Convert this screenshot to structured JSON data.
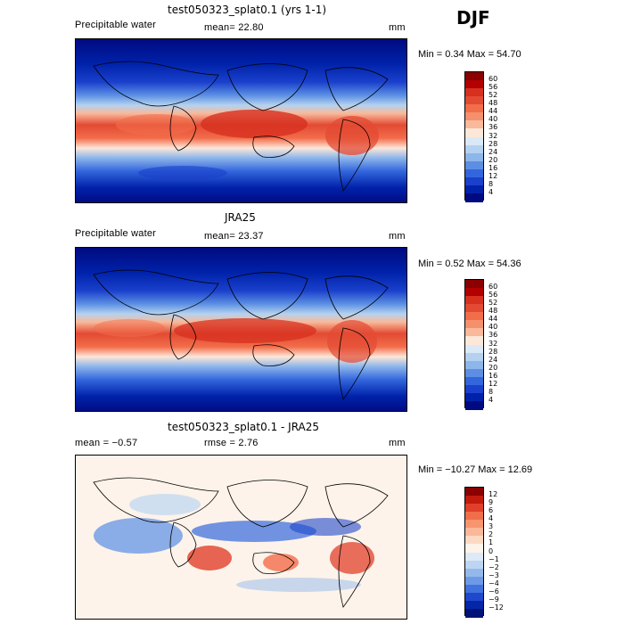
{
  "season": "DJF",
  "panels": [
    {
      "title": "test050323_splat0.1 (yrs 1-1)",
      "left_label": "Precipitable water",
      "center_label": "mean=  22.80",
      "units": "mm",
      "minmax": "Min =   0.34 Max =  54.70"
    },
    {
      "title": "JRA25",
      "left_label": "Precipitable water",
      "center_label": "mean=  23.37",
      "units": "mm",
      "minmax": "Min =   0.52 Max =  54.36"
    },
    {
      "title": "test050323_splat0.1 - JRA25",
      "left_label": "mean =  −0.57",
      "center_label": "rmse =   2.76",
      "units": "mm",
      "minmax": "Min = −10.27 Max =  12.69"
    }
  ],
  "colorbars": {
    "field": {
      "labels": [
        "60",
        "56",
        "52",
        "48",
        "44",
        "40",
        "36",
        "32",
        "28",
        "24",
        "20",
        "16",
        "12",
        "8",
        "4"
      ],
      "colors": [
        "#8b0000",
        "#b30000",
        "#d7301f",
        "#e34a33",
        "#f26d4a",
        "#f4906b",
        "#f9b99a",
        "#fde7d8",
        "#dbe9f6",
        "#b4d2f0",
        "#8db6ea",
        "#5c8fe3",
        "#3366dd",
        "#1a40cc",
        "#0022aa",
        "#000a80"
      ]
    },
    "anom": {
      "labels": [
        "12",
        "9",
        "6",
        "4",
        "3",
        "2",
        "1",
        "0",
        "−1",
        "−2",
        "−3",
        "−4",
        "−6",
        "−9",
        "−12"
      ],
      "colors": [
        "#8b0000",
        "#c21a0d",
        "#e0402a",
        "#f26d4a",
        "#f7956f",
        "#fab898",
        "#fdd9c4",
        "#fdf3ea",
        "#dde9f7",
        "#bcd5f2",
        "#93b9eb",
        "#6d9ae6",
        "#4272dd",
        "#1f48cc",
        "#0626a8",
        "#001478"
      ]
    }
  }
}
